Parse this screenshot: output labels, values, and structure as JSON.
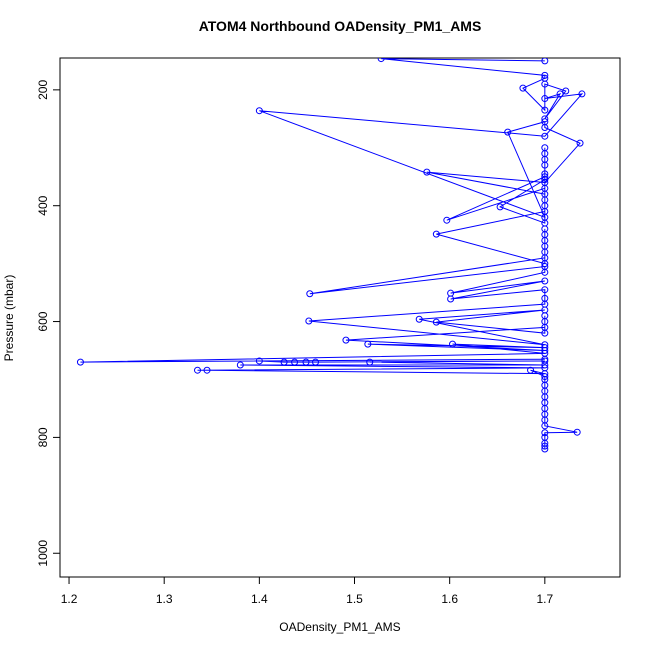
{
  "chart_data": {
    "type": "scatter",
    "connect": true,
    "title": "ATOM4 Northbound OADensity_PM1_AMS",
    "xlabel": "OADensity_PM1_AMS",
    "ylabel": "Pressure (mbar)",
    "color": "#0000ff",
    "marker": "open-circle",
    "y_reverse": true,
    "xlim": [
      1.1905,
      1.779
    ],
    "ylim": [
      145,
      1041
    ],
    "xticks": [
      1.2,
      1.3,
      1.4,
      1.5,
      1.6,
      1.7
    ],
    "yticks": [
      200,
      400,
      600,
      800,
      1000
    ],
    "x": [
      1.7,
      1.528,
      1.7,
      1.7,
      1.677,
      1.7,
      1.7,
      1.722,
      1.7,
      1.716,
      1.7,
      1.739,
      1.7,
      1.4,
      1.7,
      1.661,
      1.7,
      1.7,
      1.737,
      1.7,
      1.576,
      1.7,
      1.7,
      1.7,
      1.7,
      1.7,
      1.7,
      1.7,
      1.653,
      1.7,
      1.7,
      1.597,
      1.7,
      1.7,
      1.7,
      1.7,
      1.586,
      1.7,
      1.7,
      1.7,
      1.7,
      1.7,
      1.7,
      1.7,
      1.453,
      1.7,
      1.7,
      1.601,
      1.7,
      1.601,
      1.7,
      1.7,
      1.7,
      1.452,
      1.7,
      1.568,
      1.7,
      1.586,
      1.7,
      1.7,
      1.7,
      1.7,
      1.491,
      1.7,
      1.514,
      1.7,
      1.603,
      1.7,
      1.212,
      1.7,
      1.4,
      1.426,
      1.437,
      1.449,
      1.459,
      1.7,
      1.516,
      1.7,
      1.38,
      1.7,
      1.335,
      1.345,
      1.7,
      1.685,
      1.7,
      1.7,
      1.7,
      1.7,
      1.7,
      1.7,
      1.7,
      1.7,
      1.7,
      1.7,
      1.734,
      1.7,
      1.7,
      1.7,
      1.7,
      1.7
    ],
    "values": [
      150,
      146,
      175,
      180,
      197,
      235,
      190,
      202,
      250,
      207,
      215,
      207,
      280,
      236,
      420,
      273,
      255,
      265,
      292,
      360,
      342,
      380,
      300,
      310,
      320,
      330,
      345,
      355,
      402,
      430,
      370,
      425,
      350,
      390,
      400,
      410,
      449,
      500,
      440,
      450,
      460,
      470,
      480,
      490,
      552,
      505,
      515,
      551,
      530,
      561,
      545,
      560,
      570,
      599,
      640,
      596,
      580,
      601,
      620,
      590,
      600,
      610,
      632,
      650,
      639,
      645,
      639,
      655,
      670,
      665,
      668,
      670,
      670,
      670,
      670,
      668,
      670,
      675,
      675,
      680,
      684,
      684,
      690,
      684,
      695,
      700,
      710,
      720,
      730,
      740,
      750,
      760,
      770,
      780,
      791,
      792,
      800,
      810,
      815,
      820
    ]
  }
}
